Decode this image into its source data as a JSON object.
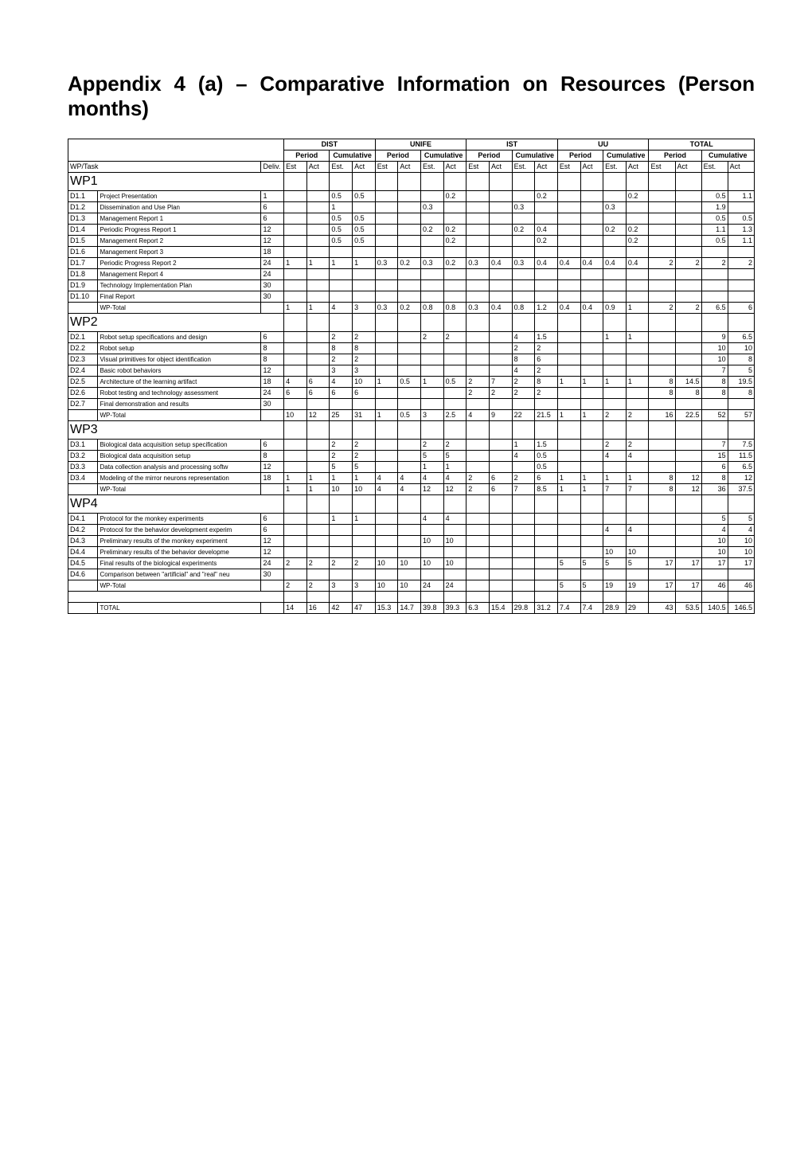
{
  "title": "Appendix 4 (a) – Comparative Information on Resources (Person months)",
  "groups": [
    "DIST",
    "UNIFE",
    "IST",
    "UU",
    "TOTAL"
  ],
  "subheaders": [
    "Period",
    "Cumulative"
  ],
  "col_sub": [
    "Est",
    "Act",
    "Est.",
    "Act"
  ],
  "id_label": "WP/Task",
  "deliv_label": "Deliv.",
  "rows": [
    {
      "type": "wp",
      "id": "WP1"
    },
    {
      "id": "D1.1",
      "name": "Project Presentation",
      "deliv": "1",
      "c": [
        "",
        "",
        "0.5",
        "0.5",
        "",
        "",
        "",
        "0.2",
        "",
        "",
        "",
        "0.2",
        "",
        "",
        "",
        "0.2",
        "",
        "",
        "0.5",
        "1.1"
      ]
    },
    {
      "id": "D1.2",
      "name": "Dissemination and Use Plan",
      "deliv": "6",
      "c": [
        "",
        "",
        "1",
        "",
        "",
        "",
        "0.3",
        "",
        "",
        "",
        "0.3",
        "",
        "",
        "",
        "0.3",
        "",
        "",
        "",
        "1.9",
        ""
      ]
    },
    {
      "id": "D1.3",
      "name": "Management Report 1",
      "deliv": "6",
      "c": [
        "",
        "",
        "0.5",
        "0.5",
        "",
        "",
        "",
        "",
        "",
        "",
        "",
        "",
        "",
        "",
        "",
        "",
        "",
        "",
        "0.5",
        "0.5"
      ]
    },
    {
      "id": "D1.4",
      "name": "Periodic Progress Report 1",
      "deliv": "12",
      "c": [
        "",
        "",
        "0.5",
        "0.5",
        "",
        "",
        "0.2",
        "0.2",
        "",
        "",
        "0.2",
        "0.4",
        "",
        "",
        "0.2",
        "0.2",
        "",
        "",
        "1.1",
        "1.3"
      ]
    },
    {
      "id": "D1.5",
      "name": "Management Report 2",
      "deliv": "12",
      "c": [
        "",
        "",
        "0.5",
        "0.5",
        "",
        "",
        "",
        "0.2",
        "",
        "",
        "",
        "0.2",
        "",
        "",
        "",
        "0.2",
        "",
        "",
        "0.5",
        "1.1"
      ]
    },
    {
      "id": "D1.6",
      "name": "Management Report 3",
      "deliv": "18",
      "c": [
        "",
        "",
        "",
        "",
        "",
        "",
        "",
        "",
        "",
        "",
        "",
        "",
        "",
        "",
        "",
        "",
        "",
        "",
        "",
        ""
      ]
    },
    {
      "id": "D1.7",
      "name": "Periodic Progress Report 2",
      "deliv": "24",
      "c": [
        "1",
        "1",
        "1",
        "1",
        "0.3",
        "0.2",
        "0.3",
        "0.2",
        "0.3",
        "0.4",
        "0.3",
        "0.4",
        "0.4",
        "0.4",
        "0.4",
        "0.4",
        "2",
        "2",
        "2",
        "2"
      ]
    },
    {
      "id": "D1.8",
      "name": "Management Report 4",
      "deliv": "24",
      "c": [
        "",
        "",
        "",
        "",
        "",
        "",
        "",
        "",
        "",
        "",
        "",
        "",
        "",
        "",
        "",
        "",
        "",
        "",
        "",
        ""
      ]
    },
    {
      "id": "D1.9",
      "name": "Technology Implementation Plan",
      "deliv": "30",
      "c": [
        "",
        "",
        "",
        "",
        "",
        "",
        "",
        "",
        "",
        "",
        "",
        "",
        "",
        "",
        "",
        "",
        "",
        "",
        "",
        ""
      ]
    },
    {
      "id": "D1.10",
      "name": "Final Report",
      "deliv": "30",
      "c": [
        "",
        "",
        "",
        "",
        "",
        "",
        "",
        "",
        "",
        "",
        "",
        "",
        "",
        "",
        "",
        "",
        "",
        "",
        "",
        ""
      ]
    },
    {
      "id": "",
      "name": "WP-Total",
      "deliv": "",
      "c": [
        "1",
        "1",
        "4",
        "3",
        "0.3",
        "0.2",
        "0.8",
        "0.8",
        "0.3",
        "0.4",
        "0.8",
        "1.2",
        "0.4",
        "0.4",
        "0.9",
        "1",
        "2",
        "2",
        "6.5",
        "6"
      ]
    },
    {
      "type": "wp",
      "id": "WP2"
    },
    {
      "id": "D2.1",
      "name": "Robot setup specifications and design",
      "deliv": "6",
      "c": [
        "",
        "",
        "2",
        "2",
        "",
        "",
        "2",
        "2",
        "",
        "",
        "4",
        "1.5",
        "",
        "",
        "1",
        "1",
        "",
        "",
        "9",
        "6.5"
      ]
    },
    {
      "id": "D2.2",
      "name": "Robot setup",
      "deliv": "8",
      "c": [
        "",
        "",
        "8",
        "8",
        "",
        "",
        "",
        "",
        "",
        "",
        "2",
        "2",
        "",
        "",
        "",
        "",
        "",
        "",
        "10",
        "10"
      ]
    },
    {
      "id": "D2.3",
      "name": "Visual primitives for object identification",
      "deliv": "8",
      "c": [
        "",
        "",
        "2",
        "2",
        "",
        "",
        "",
        "",
        "",
        "",
        "8",
        "6",
        "",
        "",
        "",
        "",
        "",
        "",
        "10",
        "8"
      ]
    },
    {
      "id": "D2.4",
      "name": "Basic robot behaviors",
      "deliv": "12",
      "c": [
        "",
        "",
        "3",
        "3",
        "",
        "",
        "",
        "",
        "",
        "",
        "4",
        "2",
        "",
        "",
        "",
        "",
        "",
        "",
        "7",
        "5"
      ]
    },
    {
      "id": "D2.5",
      "name": "Architecture of the learning artifact",
      "deliv": "18",
      "c": [
        "4",
        "6",
        "4",
        "10",
        "1",
        "0.5",
        "1",
        "0.5",
        "2",
        "7",
        "2",
        "8",
        "1",
        "1",
        "1",
        "1",
        "8",
        "14.5",
        "8",
        "19.5"
      ]
    },
    {
      "id": "D2.6",
      "name": "Robot testing and technology assessment",
      "deliv": "24",
      "c": [
        "6",
        "6",
        "6",
        "6",
        "",
        "",
        "",
        "",
        "2",
        "2",
        "2",
        "2",
        "",
        "",
        "",
        "",
        "8",
        "8",
        "8",
        "8"
      ]
    },
    {
      "id": "D2.7",
      "name": "Final demonstration and results",
      "deliv": "30",
      "c": [
        "",
        "",
        "",
        "",
        "",
        "",
        "",
        "",
        "",
        "",
        "",
        "",
        "",
        "",
        "",
        "",
        "",
        "",
        "",
        ""
      ]
    },
    {
      "id": "",
      "name": "WP-Total",
      "deliv": "",
      "c": [
        "10",
        "12",
        "25",
        "31",
        "1",
        "0.5",
        "3",
        "2.5",
        "4",
        "9",
        "22",
        "21.5",
        "1",
        "1",
        "2",
        "2",
        "16",
        "22.5",
        "52",
        "57"
      ]
    },
    {
      "type": "wp",
      "id": "WP3"
    },
    {
      "id": "D3.1",
      "name": "Biological data acquisition setup specification",
      "deliv": "6",
      "c": [
        "",
        "",
        "2",
        "2",
        "",
        "",
        "2",
        "2",
        "",
        "",
        "1",
        "1.5",
        "",
        "",
        "2",
        "2",
        "",
        "",
        "7",
        "7.5"
      ]
    },
    {
      "id": "D3.2",
      "name": "Biological data acquisition setup",
      "deliv": "8",
      "c": [
        "",
        "",
        "2",
        "2",
        "",
        "",
        "5",
        "5",
        "",
        "",
        "4",
        "0.5",
        "",
        "",
        "4",
        "4",
        "",
        "",
        "15",
        "11.5"
      ]
    },
    {
      "id": "D3.3",
      "name": "Data collection analysis and processing softw",
      "deliv": "12",
      "c": [
        "",
        "",
        "5",
        "5",
        "",
        "",
        "1",
        "1",
        "",
        "",
        "",
        "0.5",
        "",
        "",
        "",
        "",
        "",
        "",
        "6",
        "6.5"
      ]
    },
    {
      "id": "D3.4",
      "name": "Modeling of the mirror neurons representation",
      "deliv": "18",
      "c": [
        "1",
        "1",
        "1",
        "1",
        "4",
        "4",
        "4",
        "4",
        "2",
        "6",
        "2",
        "6",
        "1",
        "1",
        "1",
        "1",
        "8",
        "12",
        "8",
        "12"
      ]
    },
    {
      "id": "",
      "name": "WP-Total",
      "deliv": "",
      "c": [
        "1",
        "1",
        "10",
        "10",
        "4",
        "4",
        "12",
        "12",
        "2",
        "6",
        "7",
        "8.5",
        "1",
        "1",
        "7",
        "7",
        "8",
        "12",
        "36",
        "37.5"
      ]
    },
    {
      "type": "wp",
      "id": "WP4"
    },
    {
      "id": "D4.1",
      "name": "Protocol for the monkey experiments",
      "deliv": "6",
      "c": [
        "",
        "",
        "1",
        "1",
        "",
        "",
        "4",
        "4",
        "",
        "",
        "",
        "",
        "",
        "",
        "",
        "",
        "",
        "",
        "5",
        "5"
      ]
    },
    {
      "id": "D4.2",
      "name": "Protocol for the behavior development experim",
      "deliv": "6",
      "c": [
        "",
        "",
        "",
        "",
        "",
        "",
        "",
        "",
        "",
        "",
        "",
        "",
        "",
        "",
        "4",
        "4",
        "",
        "",
        "4",
        "4"
      ]
    },
    {
      "id": "D4.3",
      "name": "Preliminary results of the monkey experiment",
      "deliv": "12",
      "c": [
        "",
        "",
        "",
        "",
        "",
        "",
        "10",
        "10",
        "",
        "",
        "",
        "",
        "",
        "",
        "",
        "",
        "",
        "",
        "10",
        "10"
      ]
    },
    {
      "id": "D4.4",
      "name": "Preliminary results of the behavior developme",
      "deliv": "12",
      "c": [
        "",
        "",
        "",
        "",
        "",
        "",
        "",
        "",
        "",
        "",
        "",
        "",
        "",
        "",
        "10",
        "10",
        "",
        "",
        "10",
        "10"
      ]
    },
    {
      "id": "D4.5",
      "name": "Final results of the biological experiments",
      "deliv": "24",
      "c": [
        "2",
        "2",
        "2",
        "2",
        "10",
        "10",
        "10",
        "10",
        "",
        "",
        "",
        "",
        "5",
        "5",
        "5",
        "5",
        "17",
        "17",
        "17",
        "17"
      ]
    },
    {
      "id": "D4.6",
      "name": "Comparison between \"artificial\" and \"real\" neu",
      "deliv": "30",
      "c": [
        "",
        "",
        "",
        "",
        "",
        "",
        "",
        "",
        "",
        "",
        "",
        "",
        "",
        "",
        "",
        "",
        "",
        "",
        "",
        ""
      ]
    },
    {
      "id": "",
      "name": "WP-Total",
      "deliv": "",
      "c": [
        "2",
        "2",
        "3",
        "3",
        "10",
        "10",
        "24",
        "24",
        "",
        "",
        "",
        "",
        "5",
        "5",
        "19",
        "19",
        "17",
        "17",
        "46",
        "46"
      ]
    },
    {
      "type": "blank"
    },
    {
      "id": "",
      "name": "TOTAL",
      "deliv": "",
      "c": [
        "14",
        "16",
        "42",
        "47",
        "15.3",
        "14.7",
        "39.8",
        "39.3",
        "6.3",
        "15.4",
        "29.8",
        "31.2",
        "7.4",
        "7.4",
        "28.9",
        "29",
        "43",
        "53.5",
        "140.5",
        "146.5"
      ]
    }
  ],
  "right_align_cols": [
    16,
    17,
    18,
    19
  ]
}
